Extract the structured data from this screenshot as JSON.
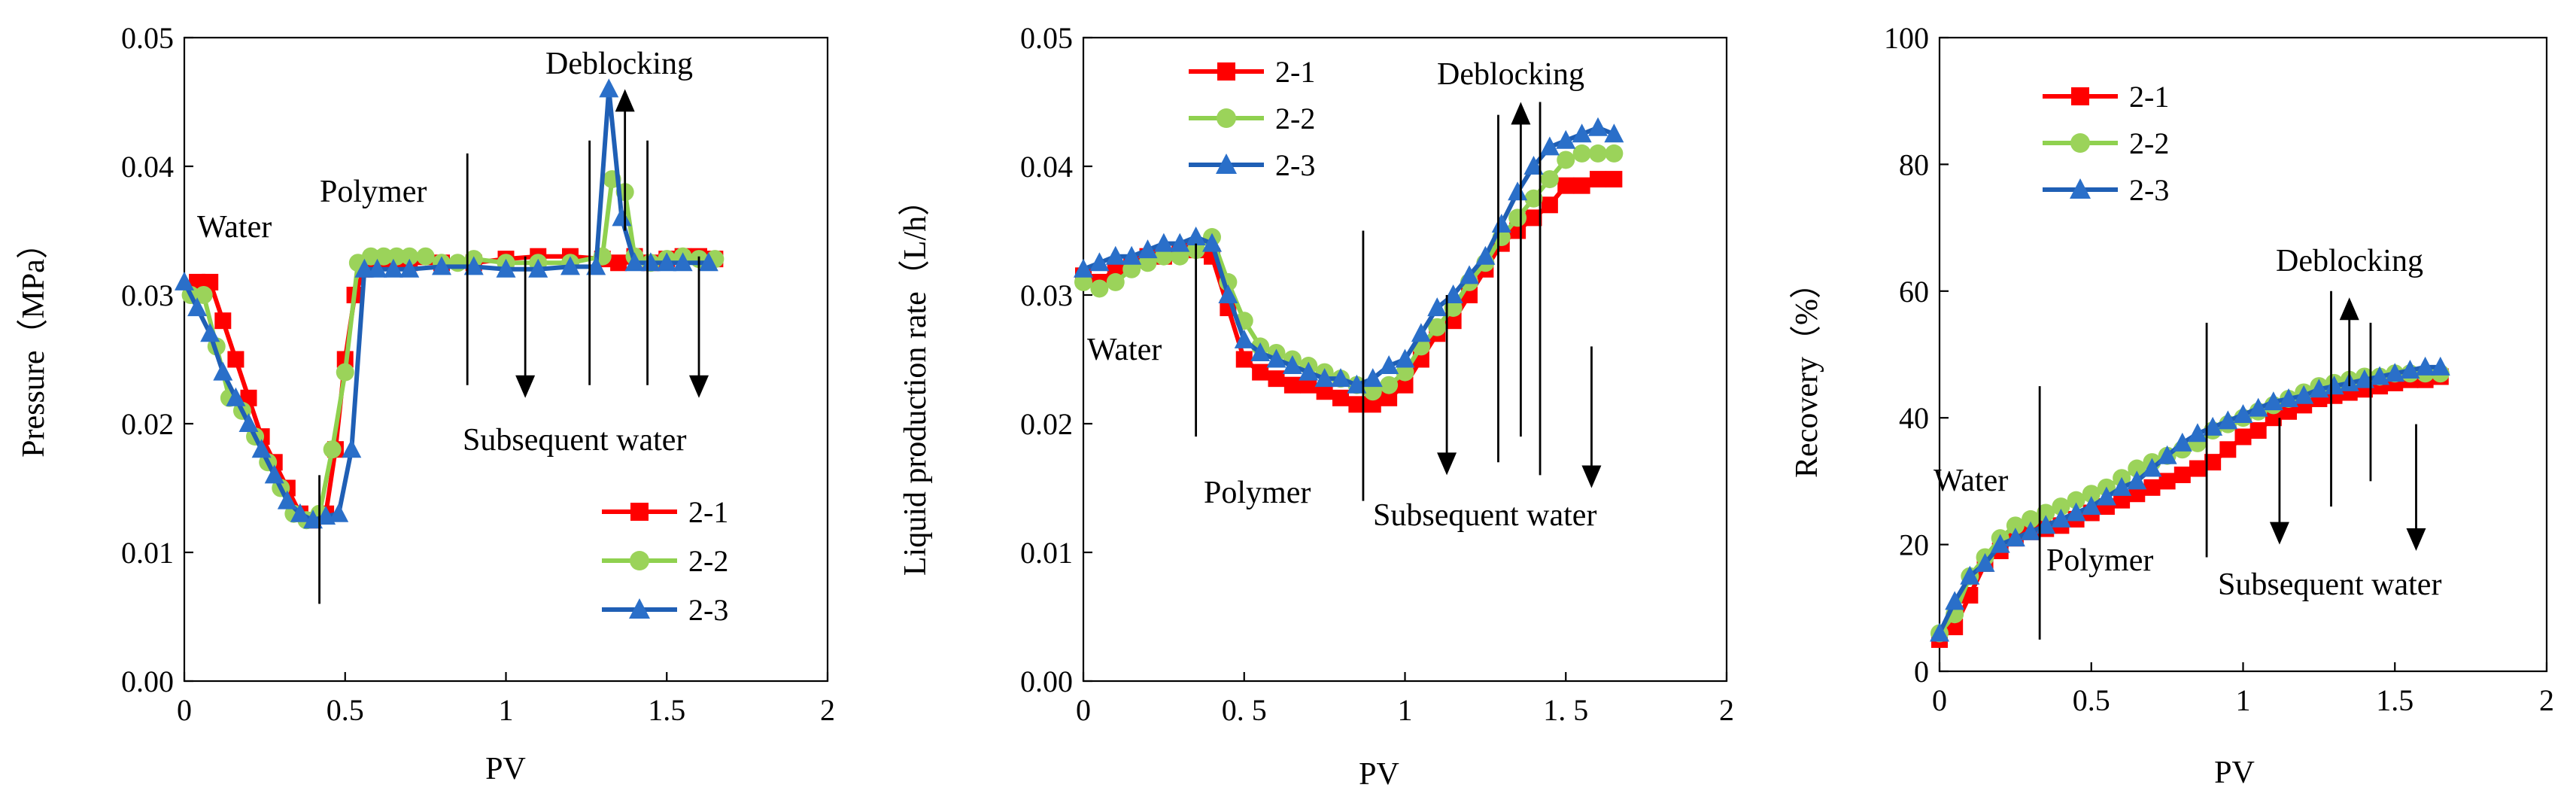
{
  "colors": {
    "s21": "#ff0000",
    "s22": "#8fd14f",
    "s23": "#1f5fb5",
    "s21_marker": "#ff0000",
    "s22_marker": "#9bd35a",
    "s23_marker": "#2a6fc9"
  },
  "chart_data": [
    {
      "type": "line",
      "xlabel": "PV",
      "ylabel": "Pressure（MPa）",
      "xlim": [
        0,
        2
      ],
      "ylim": [
        0,
        0.05
      ],
      "xticks": [
        "0",
        "0.5",
        "1",
        "1.5",
        "2"
      ],
      "yticks": [
        "0.00",
        "0.01",
        "0.02",
        "0.03",
        "0.04",
        "0.05"
      ],
      "legend": [
        "2-1",
        "2-2",
        "2-3"
      ],
      "legend_position": "bottom-right",
      "annotations": [
        "Water",
        "Polymer",
        "Deblocking",
        "Subsequent water"
      ],
      "series": [
        {
          "name": "2-1",
          "x": [
            0.04,
            0.08,
            0.12,
            0.16,
            0.2,
            0.24,
            0.28,
            0.32,
            0.36,
            0.4,
            0.44,
            0.47,
            0.5,
            0.53,
            0.56,
            0.6,
            0.65,
            0.7,
            0.8,
            0.9,
            1.0,
            1.1,
            1.2,
            1.3,
            1.35,
            1.4,
            1.45,
            1.5,
            1.55,
            1.6,
            1.65
          ],
          "y": [
            0.031,
            0.031,
            0.028,
            0.025,
            0.022,
            0.019,
            0.017,
            0.015,
            0.013,
            0.0125,
            0.013,
            0.018,
            0.025,
            0.03,
            0.032,
            0.0325,
            0.0325,
            0.0325,
            0.0325,
            0.0325,
            0.0328,
            0.033,
            0.033,
            0.0328,
            0.0325,
            0.033,
            0.0325,
            0.0328,
            0.033,
            0.033,
            0.0328
          ]
        },
        {
          "name": "2-2",
          "x": [
            0.02,
            0.06,
            0.1,
            0.14,
            0.18,
            0.22,
            0.26,
            0.3,
            0.34,
            0.38,
            0.42,
            0.46,
            0.5,
            0.54,
            0.58,
            0.62,
            0.66,
            0.7,
            0.75,
            0.8,
            0.85,
            0.9,
            1.0,
            1.1,
            1.2,
            1.3,
            1.33,
            1.37,
            1.4,
            1.45,
            1.5,
            1.55,
            1.6,
            1.65
          ],
          "y": [
            0.03,
            0.03,
            0.026,
            0.022,
            0.021,
            0.019,
            0.017,
            0.015,
            0.013,
            0.0125,
            0.013,
            0.018,
            0.024,
            0.0325,
            0.033,
            0.033,
            0.033,
            0.033,
            0.033,
            0.0325,
            0.0325,
            0.0328,
            0.0325,
            0.0325,
            0.0325,
            0.033,
            0.039,
            0.038,
            0.033,
            0.0325,
            0.0328,
            0.033,
            0.0328,
            0.0328
          ]
        },
        {
          "name": "2-3",
          "x": [
            0.0,
            0.04,
            0.08,
            0.12,
            0.16,
            0.2,
            0.24,
            0.28,
            0.32,
            0.36,
            0.4,
            0.44,
            0.48,
            0.52,
            0.56,
            0.6,
            0.65,
            0.7,
            0.8,
            0.9,
            1.0,
            1.1,
            1.2,
            1.28,
            1.32,
            1.36,
            1.4,
            1.45,
            1.5,
            1.55,
            1.63
          ],
          "y": [
            0.031,
            0.029,
            0.027,
            0.024,
            0.022,
            0.02,
            0.018,
            0.016,
            0.014,
            0.013,
            0.0125,
            0.0128,
            0.013,
            0.018,
            0.032,
            0.032,
            0.032,
            0.032,
            0.0322,
            0.0322,
            0.032,
            0.032,
            0.0322,
            0.0322,
            0.046,
            0.036,
            0.0325,
            0.0325,
            0.0325,
            0.0325,
            0.0325
          ]
        }
      ]
    },
    {
      "type": "line",
      "xlabel": "PV",
      "ylabel": "Liquid production rate（L/h）",
      "xlim": [
        0,
        2
      ],
      "ylim": [
        0,
        0.05
      ],
      "xticks": [
        "0",
        "0. 5",
        "1",
        "1. 5",
        "2"
      ],
      "yticks": [
        "0.00",
        "0.01",
        "0.02",
        "0.03",
        "0.04",
        "0.05"
      ],
      "legend": [
        "2-1",
        "2-2",
        "2-3"
      ],
      "legend_position": "top-left",
      "annotations": [
        "Water",
        "Polymer",
        "Deblocking",
        "Subsequent water"
      ],
      "series": [
        {
          "name": "2-1",
          "x": [
            0.0,
            0.05,
            0.1,
            0.15,
            0.2,
            0.25,
            0.3,
            0.35,
            0.4,
            0.45,
            0.5,
            0.55,
            0.6,
            0.65,
            0.7,
            0.75,
            0.8,
            0.85,
            0.9,
            0.95,
            1.0,
            1.05,
            1.1,
            1.15,
            1.2,
            1.25,
            1.3,
            1.35,
            1.4,
            1.45,
            1.5,
            1.55,
            1.6,
            1.65
          ],
          "y": [
            0.0315,
            0.031,
            0.032,
            0.0325,
            0.033,
            0.033,
            0.0335,
            0.0335,
            0.033,
            0.029,
            0.025,
            0.024,
            0.0235,
            0.023,
            0.023,
            0.0225,
            0.022,
            0.0215,
            0.0215,
            0.022,
            0.023,
            0.025,
            0.027,
            0.028,
            0.03,
            0.032,
            0.034,
            0.035,
            0.036,
            0.037,
            0.0385,
            0.0385,
            0.039,
            0.039
          ]
        },
        {
          "name": "2-2",
          "x": [
            0.0,
            0.05,
            0.1,
            0.15,
            0.2,
            0.25,
            0.3,
            0.35,
            0.4,
            0.45,
            0.5,
            0.55,
            0.6,
            0.65,
            0.7,
            0.75,
            0.8,
            0.85,
            0.9,
            0.95,
            1.0,
            1.05,
            1.1,
            1.15,
            1.2,
            1.25,
            1.3,
            1.35,
            1.4,
            1.45,
            1.5,
            1.55,
            1.6,
            1.65
          ],
          "y": [
            0.031,
            0.0305,
            0.031,
            0.032,
            0.0325,
            0.033,
            0.033,
            0.0335,
            0.0345,
            0.031,
            0.028,
            0.026,
            0.0255,
            0.025,
            0.0245,
            0.024,
            0.0235,
            0.023,
            0.0225,
            0.023,
            0.024,
            0.026,
            0.0275,
            0.029,
            0.031,
            0.0325,
            0.0345,
            0.036,
            0.0375,
            0.039,
            0.0405,
            0.041,
            0.041,
            0.041
          ]
        },
        {
          "name": "2-3",
          "x": [
            0.0,
            0.05,
            0.1,
            0.15,
            0.2,
            0.25,
            0.3,
            0.35,
            0.4,
            0.45,
            0.5,
            0.55,
            0.6,
            0.65,
            0.7,
            0.75,
            0.8,
            0.85,
            0.9,
            0.95,
            1.0,
            1.05,
            1.1,
            1.15,
            1.2,
            1.25,
            1.3,
            1.35,
            1.4,
            1.45,
            1.5,
            1.55,
            1.6,
            1.65
          ],
          "y": [
            0.032,
            0.0325,
            0.033,
            0.033,
            0.0335,
            0.034,
            0.034,
            0.0345,
            0.034,
            0.03,
            0.0265,
            0.0255,
            0.025,
            0.0245,
            0.024,
            0.0235,
            0.0235,
            0.023,
            0.0235,
            0.0245,
            0.025,
            0.027,
            0.029,
            0.03,
            0.0315,
            0.033,
            0.0355,
            0.038,
            0.04,
            0.0415,
            0.042,
            0.0425,
            0.043,
            0.0425
          ]
        }
      ]
    },
    {
      "type": "line",
      "xlabel": "PV",
      "ylabel": "Recovery（%）",
      "xlim": [
        0,
        2
      ],
      "ylim": [
        0,
        100
      ],
      "xticks": [
        "0",
        "0.5",
        "1",
        "1.5",
        "2"
      ],
      "yticks": [
        "0",
        "20",
        "40",
        "60",
        "80",
        "100"
      ],
      "legend": [
        "2-1",
        "2-2",
        "2-3"
      ],
      "legend_position": "top-left",
      "annotations": [
        "Water",
        "Polymer",
        "Deblocking",
        "Subsequent water"
      ],
      "series": [
        {
          "name": "2-1",
          "x": [
            0.0,
            0.05,
            0.1,
            0.15,
            0.2,
            0.25,
            0.3,
            0.35,
            0.4,
            0.45,
            0.5,
            0.55,
            0.6,
            0.65,
            0.7,
            0.75,
            0.8,
            0.85,
            0.9,
            0.95,
            1.0,
            1.05,
            1.1,
            1.15,
            1.2,
            1.25,
            1.3,
            1.35,
            1.4,
            1.45,
            1.5,
            1.55,
            1.6,
            1.65
          ],
          "y": [
            5,
            7,
            12,
            17,
            19,
            21,
            22,
            22.5,
            23,
            24,
            25,
            26,
            27,
            28,
            29,
            30,
            31,
            32,
            33,
            35,
            37,
            38,
            40,
            41,
            42,
            43,
            43.5,
            44,
            44.5,
            45,
            45.5,
            46,
            46,
            46.5
          ]
        },
        {
          "name": "2-2",
          "x": [
            0.0,
            0.05,
            0.1,
            0.15,
            0.2,
            0.25,
            0.3,
            0.35,
            0.4,
            0.45,
            0.5,
            0.55,
            0.6,
            0.65,
            0.7,
            0.75,
            0.8,
            0.85,
            0.9,
            0.95,
            1.0,
            1.05,
            1.1,
            1.15,
            1.2,
            1.25,
            1.3,
            1.35,
            1.4,
            1.45,
            1.5,
            1.55,
            1.6,
            1.65
          ],
          "y": [
            6,
            9,
            15,
            18,
            21,
            23,
            24,
            25,
            26,
            27,
            28,
            29,
            30.5,
            32,
            33,
            34,
            35,
            36,
            38,
            39,
            40,
            41,
            42,
            43,
            44,
            45,
            45.5,
            46,
            46.5,
            46.5,
            47,
            47,
            47,
            47
          ]
        },
        {
          "name": "2-3",
          "x": [
            0.0,
            0.05,
            0.1,
            0.15,
            0.2,
            0.25,
            0.3,
            0.35,
            0.4,
            0.45,
            0.5,
            0.55,
            0.6,
            0.65,
            0.7,
            0.75,
            0.8,
            0.85,
            0.9,
            0.95,
            1.0,
            1.05,
            1.1,
            1.15,
            1.2,
            1.25,
            1.3,
            1.35,
            1.4,
            1.45,
            1.5,
            1.55,
            1.6,
            1.65
          ],
          "y": [
            6,
            11,
            15,
            17,
            20,
            21,
            22,
            23,
            24,
            25,
            26,
            27.5,
            29,
            30,
            32,
            34,
            36,
            37.5,
            38.5,
            39.5,
            40.5,
            41.5,
            42.5,
            43,
            43.5,
            44.5,
            45,
            45.5,
            46,
            46.5,
            47,
            47.5,
            48,
            48
          ]
        }
      ]
    }
  ]
}
